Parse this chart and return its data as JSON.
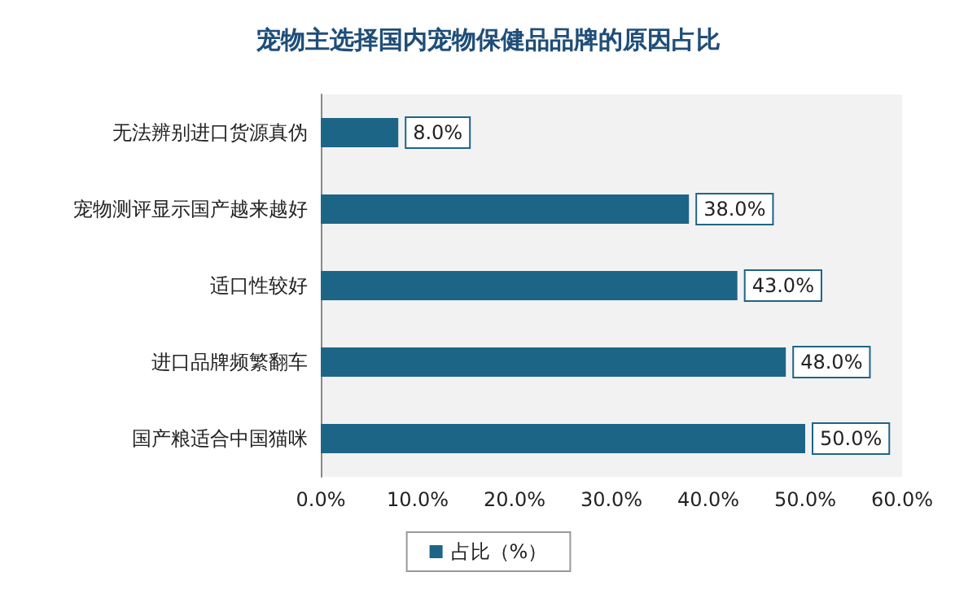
{
  "chart_data": {
    "type": "bar",
    "orientation": "horizontal",
    "title": "宠物主选择国内宠物保健品品牌的原因占比",
    "categories": [
      "无法辨别进口货源真伪",
      "宠物测评显示国产越来越好",
      "适口性较好",
      "进口品牌频繁翻车",
      "国产粮适合中国猫咪"
    ],
    "series": [
      {
        "name": "占比（%）",
        "color": "#1d6587",
        "values": [
          8,
          38,
          43,
          48,
          50
        ],
        "value_labels": [
          "8.0%",
          "38.0%",
          "43.0%",
          "48.0%",
          "50.0%"
        ]
      }
    ],
    "xlim": [
      0,
      60
    ],
    "xticks": [
      {
        "value": 0,
        "label": "0.0%"
      },
      {
        "value": 10,
        "label": "10.0%"
      },
      {
        "value": 20,
        "label": "20.0%"
      },
      {
        "value": 30,
        "label": "30.0%"
      },
      {
        "value": 40,
        "label": "40.0%"
      },
      {
        "value": 50,
        "label": "50.0%"
      },
      {
        "value": 60,
        "label": "60.0%"
      }
    ],
    "grid": false,
    "legend": "bottom"
  }
}
